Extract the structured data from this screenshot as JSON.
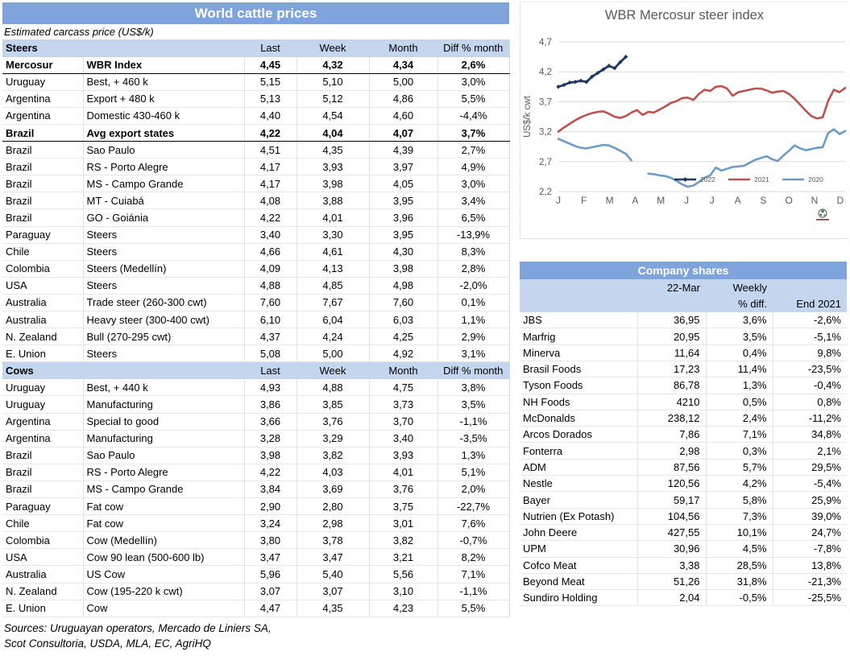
{
  "colors": {
    "title_bar": "#7EA4DB",
    "section_header": "#C3D6EE",
    "series_2022": "#1F3864",
    "series_2021": "#C0504D",
    "series_2020": "#6D9BC8",
    "axis_text": "#595959",
    "gridline": "#D9D9D9"
  },
  "left_table": {
    "title": "World cattle prices",
    "subtitle": "Estimated carcass price (US$/k)",
    "columns": [
      "Last",
      "Week",
      "Month",
      "Diff % month"
    ],
    "sections": [
      {
        "label": "Steers",
        "rows": [
          {
            "bold": true,
            "c": [
              "Mercosur",
              "WBR Index",
              "4,45",
              "4,32",
              "4,34",
              "2,6%"
            ]
          },
          {
            "bold": false,
            "c": [
              "Uruguay",
              "Best, + 460 k",
              "5,15",
              "5,10",
              "5,00",
              "3,0%"
            ]
          },
          {
            "bold": false,
            "c": [
              "Argentina",
              "Export + 480 k",
              "5,13",
              "5,12",
              "4,86",
              "5,5%"
            ]
          },
          {
            "bold": false,
            "c": [
              "Argentina",
              "Domestic 430-460 k",
              "4,40",
              "4,54",
              "4,60",
              "-4,4%"
            ]
          },
          {
            "bold": true,
            "c": [
              "Brazil",
              "Avg export states",
              "4,22",
              "4,04",
              "4,07",
              "3,7%"
            ]
          },
          {
            "bold": false,
            "c": [
              "Brazil",
              "Sao Paulo",
              "4,51",
              "4,35",
              "4,39",
              "2,7%"
            ]
          },
          {
            "bold": false,
            "c": [
              "Brazil",
              "RS - Porto Alegre",
              "4,17",
              "3,93",
              "3,97",
              "4,9%"
            ]
          },
          {
            "bold": false,
            "c": [
              "Brazil",
              "MS - Campo Grande",
              "4,17",
              "3,98",
              "4,05",
              "3,0%"
            ]
          },
          {
            "bold": false,
            "c": [
              "Brazil",
              "MT - Cuiabá",
              "4,08",
              "3,88",
              "3,95",
              "3,4%"
            ]
          },
          {
            "bold": false,
            "c": [
              "Brazil",
              "GO - Goiánia",
              "4,22",
              "4,01",
              "3,96",
              "6,5%"
            ]
          },
          {
            "bold": false,
            "c": [
              "Paraguay",
              "Steers",
              "3,40",
              "3,30",
              "3,95",
              "-13,9%"
            ]
          },
          {
            "bold": false,
            "c": [
              "Chile",
              "Steers",
              "4,66",
              "4,61",
              "4,30",
              "8,3%"
            ]
          },
          {
            "bold": false,
            "c": [
              "Colombia",
              "Steers (Medellín)",
              "4,09",
              "4,13",
              "3,98",
              "2,8%"
            ]
          },
          {
            "bold": false,
            "c": [
              "USA",
              "Steers",
              "4,88",
              "4,85",
              "4,98",
              "-2,0%"
            ]
          },
          {
            "bold": false,
            "c": [
              "Australia",
              "Trade steer (260-300 cwt)",
              "7,60",
              "7,67",
              "7,60",
              "0,1%"
            ]
          },
          {
            "bold": false,
            "c": [
              "Australia",
              "Heavy steer (300-400 cwt)",
              "6,10",
              "6,04",
              "6,03",
              "1,1%"
            ]
          },
          {
            "bold": false,
            "c": [
              "N. Zealand",
              "Bull (270-295 cwt)",
              "4,37",
              "4,24",
              "4,25",
              "2,9%"
            ]
          },
          {
            "bold": false,
            "c": [
              "E. Union",
              "Steers",
              "5,08",
              "5,00",
              "4,92",
              "3,1%"
            ]
          }
        ]
      },
      {
        "label": "Cows",
        "rows": [
          {
            "bold": false,
            "c": [
              "Uruguay",
              "Best, + 440 k",
              "4,93",
              "4,88",
              "4,75",
              "3,8%"
            ]
          },
          {
            "bold": false,
            "c": [
              "Uruguay",
              "Manufacturing",
              "3,86",
              "3,85",
              "3,73",
              "3,5%"
            ]
          },
          {
            "bold": false,
            "c": [
              "Argentina",
              "Special to good",
              "3,66",
              "3,76",
              "3,70",
              "-1,1%"
            ]
          },
          {
            "bold": false,
            "c": [
              "Argentina",
              "Manufacturing",
              "3,28",
              "3,29",
              "3,40",
              "-3,5%"
            ]
          },
          {
            "bold": false,
            "c": [
              "Brazil",
              "Sao Paulo",
              "3,98",
              "3,82",
              "3,93",
              "1,3%"
            ]
          },
          {
            "bold": false,
            "c": [
              "Brazil",
              "RS - Porto Alegre",
              "4,22",
              "4,03",
              "4,01",
              "5,1%"
            ]
          },
          {
            "bold": false,
            "c": [
              "Brazil",
              "MS - Campo Grande",
              "3,84",
              "3,69",
              "3,76",
              "2,0%"
            ]
          },
          {
            "bold": false,
            "c": [
              "Paraguay",
              "Fat cow",
              "2,90",
              "2,80",
              "3,75",
              "-22,7%"
            ]
          },
          {
            "bold": false,
            "c": [
              "Chile",
              "Fat cow",
              "3,24",
              "2,98",
              "3,01",
              "7,6%"
            ]
          },
          {
            "bold": false,
            "c": [
              "Colombia",
              "Cow (Medellín)",
              "3,80",
              "3,78",
              "3,82",
              "-0,7%"
            ]
          },
          {
            "bold": false,
            "c": [
              "USA",
              "Cow 90 lean (500-600 lb)",
              "3,47",
              "3,47",
              "3,21",
              "8,2%"
            ]
          },
          {
            "bold": false,
            "c": [
              "Australia",
              "US Cow",
              "5,96",
              "5,40",
              "5,56",
              "7,1%"
            ]
          },
          {
            "bold": false,
            "c": [
              "N. Zealand",
              "Cow (195-220 k cwt)",
              "3,07",
              "3,07",
              "3,10",
              "-1,1%"
            ]
          },
          {
            "bold": false,
            "c": [
              "E. Union",
              "Cow",
              "4,47",
              "4,35",
              "4,23",
              "5,5%"
            ]
          }
        ]
      }
    ],
    "sources_lines": [
      "Sources: Uruguayan operators, Mercado de Liniers SA,",
      "Scot Consultoria, USDA, MLA, EC, AgriHQ"
    ]
  },
  "chart_data": {
    "type": "line",
    "title": "WBR Mercosur steer index",
    "ylabel": "US$/k cwt",
    "ylim": [
      2.2,
      4.7
    ],
    "grid": true,
    "legend_position": "bottom-right",
    "weeks_per_year": 52,
    "x_labels": [
      "J",
      "F",
      "M",
      "A",
      "M",
      "J",
      "J",
      "A",
      "S",
      "O",
      "N",
      "D"
    ],
    "yticks": [
      {
        "value": 4.7,
        "label": "4,7"
      },
      {
        "value": 4.2,
        "label": "4,2"
      },
      {
        "value": 3.7,
        "label": "3,7"
      },
      {
        "value": 3.2,
        "label": "3,2"
      },
      {
        "value": 2.7,
        "label": "2,7"
      },
      {
        "value": 2.2,
        "label": "2,2"
      }
    ],
    "series": [
      {
        "name": "2022",
        "color": "#1F3864",
        "width": 2.8,
        "marker": true,
        "values": [
          3.95,
          3.98,
          4.02,
          4.03,
          4.05,
          4.03,
          4.12,
          4.18,
          4.24,
          4.3,
          4.26,
          4.36,
          4.45
        ]
      },
      {
        "name": "2021",
        "color": "#C0504D",
        "width": 2.6,
        "marker": false,
        "values": [
          3.2,
          3.27,
          3.33,
          3.39,
          3.44,
          3.48,
          3.51,
          3.53,
          3.54,
          3.5,
          3.45,
          3.43,
          3.46,
          3.52,
          3.56,
          3.48,
          3.53,
          3.52,
          3.57,
          3.62,
          3.68,
          3.71,
          3.76,
          3.77,
          3.73,
          3.83,
          3.9,
          3.88,
          3.95,
          3.96,
          3.92,
          3.8,
          3.86,
          3.88,
          3.9,
          3.92,
          3.92,
          3.89,
          3.85,
          3.87,
          3.88,
          3.83,
          3.75,
          3.65,
          3.55,
          3.46,
          3.42,
          3.44,
          3.72,
          3.9,
          3.86,
          3.93
        ]
      },
      {
        "name": "2020",
        "color": "#6D9BC8",
        "width": 2.6,
        "marker": false,
        "values": [
          3.08,
          3.04,
          3.0,
          2.96,
          2.93,
          2.92,
          2.94,
          2.96,
          2.98,
          2.97,
          2.93,
          2.88,
          2.83,
          2.72,
          null,
          null,
          2.5,
          2.49,
          2.47,
          2.46,
          2.43,
          2.38,
          2.32,
          2.28,
          2.3,
          2.36,
          2.43,
          2.47,
          2.6,
          2.55,
          2.58,
          2.61,
          2.62,
          2.63,
          2.68,
          2.73,
          2.76,
          2.79,
          2.74,
          2.71,
          2.8,
          2.88,
          2.97,
          2.92,
          2.89,
          2.91,
          2.93,
          2.94,
          3.18,
          3.24,
          3.16,
          3.21
        ]
      }
    ]
  },
  "shares_table": {
    "title": "Company shares",
    "header_rows": [
      [
        "",
        "22-Mar",
        "Weekly",
        ""
      ],
      [
        "",
        "",
        "% diff.",
        "End 2021"
      ]
    ],
    "rows": [
      [
        "JBS",
        "36,95",
        "3,6%",
        "-2,6%"
      ],
      [
        "Marfrig",
        "20,95",
        "3,5%",
        "-5,1%"
      ],
      [
        "Minerva",
        "11,64",
        "0,4%",
        "9,8%"
      ],
      [
        "Brasil Foods",
        "17,23",
        "11,4%",
        "-23,5%"
      ],
      [
        "Tyson Foods",
        "86,78",
        "1,3%",
        "-0,4%"
      ],
      [
        "NH Foods",
        "4210",
        "0,5%",
        "0,8%"
      ],
      [
        "McDonalds",
        "238,12",
        "2,4%",
        "-11,2%"
      ],
      [
        "Arcos Dorados",
        "7,86",
        "7,1%",
        "34,8%"
      ],
      [
        "Fonterra",
        "2,98",
        "0,3%",
        "2,1%"
      ],
      [
        "ADM",
        "87,56",
        "5,7%",
        "29,5%"
      ],
      [
        "Nestle",
        "120,56",
        "4,2%",
        "-5,4%"
      ],
      [
        "Bayer",
        "59,17",
        "5,8%",
        "25,9%"
      ],
      [
        "Nutrien (Ex Potash)",
        "104,56",
        "7,3%",
        "39,0%"
      ],
      [
        "John Deere",
        "427,55",
        "10,1%",
        "24,7%"
      ],
      [
        "UPM",
        "30,96",
        "4,5%",
        "-7,8%"
      ],
      [
        "Cofco Meat",
        "3,38",
        "28,5%",
        "13,8%"
      ],
      [
        "Beyond Meat",
        "51,26",
        "31,8%",
        "-21,3%"
      ],
      [
        "Sundiro Holding",
        "2,04",
        "-0,5%",
        "-25,5%"
      ]
    ]
  }
}
